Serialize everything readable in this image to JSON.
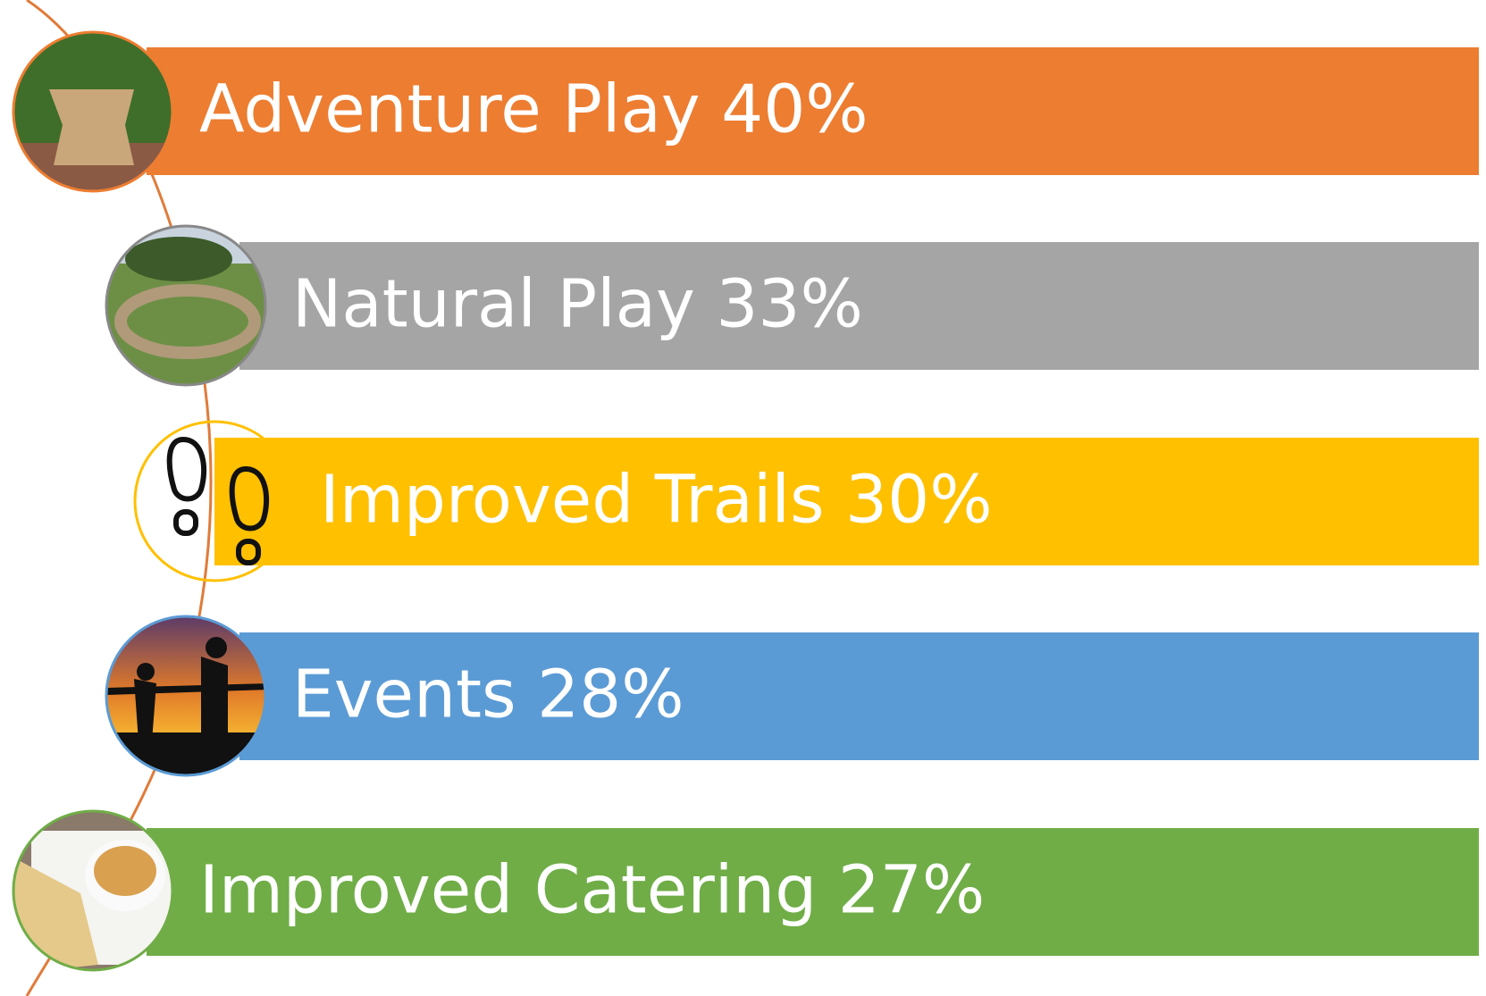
{
  "items": [
    {
      "label": "Adventure Play 40%"
    },
    {
      "label": "Natural Play 33%"
    },
    {
      "label": "Improved Trails 30%"
    },
    {
      "label": "Events 28%"
    },
    {
      "label": "Improved Catering 27%"
    }
  ]
}
